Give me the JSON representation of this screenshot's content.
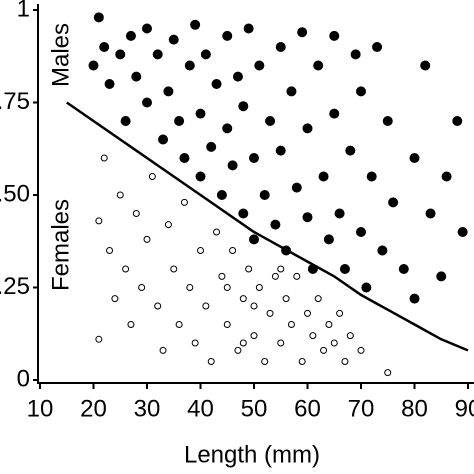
{
  "chart_data": {
    "type": "scatter",
    "xlabel": "Length (mm)",
    "xlim": [
      10,
      90
    ],
    "xticks": [
      10,
      20,
      30,
      40,
      50,
      60,
      70,
      80,
      90
    ],
    "ylim": [
      0,
      1
    ],
    "yticks": [
      0,
      {
        "value": 0.25,
        "label": ".25"
      },
      {
        "value": 0.5,
        "label": ".50"
      },
      {
        "value": 0.75,
        "label": ".75"
      },
      1
    ],
    "series": [
      {
        "name": "Males",
        "color": "#000000",
        "filled": true,
        "x": [
          21,
          22,
          20,
          23,
          25,
          27,
          26,
          28,
          30,
          30,
          32,
          33,
          34,
          35,
          36,
          37,
          38,
          39,
          40,
          40,
          41,
          42,
          43,
          44,
          45,
          45,
          46,
          47,
          48,
          48,
          49,
          50,
          50,
          51,
          52,
          53,
          54,
          55,
          55,
          56,
          57,
          58,
          59,
          60,
          60,
          61,
          62,
          63,
          64,
          65,
          65,
          66,
          67,
          68,
          69,
          70,
          70,
          71,
          72,
          73,
          74,
          75,
          76,
          78,
          80,
          80,
          82,
          83,
          85,
          86,
          88,
          89
        ],
        "values": [
          0.98,
          0.9,
          0.85,
          0.8,
          0.88,
          0.93,
          0.7,
          0.82,
          0.95,
          0.75,
          0.88,
          0.65,
          0.78,
          0.92,
          0.7,
          0.6,
          0.85,
          0.96,
          0.72,
          0.55,
          0.88,
          0.63,
          0.8,
          0.5,
          0.93,
          0.68,
          0.58,
          0.82,
          0.45,
          0.74,
          0.95,
          0.6,
          0.38,
          0.85,
          0.5,
          0.7,
          0.42,
          0.9,
          0.62,
          0.35,
          0.78,
          0.52,
          0.94,
          0.44,
          0.68,
          0.3,
          0.85,
          0.55,
          0.38,
          0.72,
          0.93,
          0.45,
          0.3,
          0.62,
          0.88,
          0.4,
          0.78,
          0.25,
          0.55,
          0.9,
          0.35,
          0.7,
          0.48,
          0.3,
          0.6,
          0.22,
          0.85,
          0.45,
          0.28,
          0.55,
          0.7,
          0.4
        ]
      },
      {
        "name": "Females",
        "color": "#000000",
        "filled": false,
        "x": [
          21,
          21,
          22,
          23,
          24,
          25,
          26,
          27,
          28,
          29,
          30,
          31,
          32,
          33,
          34,
          35,
          36,
          37,
          38,
          39,
          40,
          41,
          42,
          43,
          44,
          45,
          46,
          47,
          48,
          49,
          50,
          51,
          52,
          53,
          54,
          55,
          56,
          57,
          58,
          59,
          60,
          61,
          62,
          63,
          64,
          65,
          66,
          67,
          68,
          70,
          75,
          45,
          50,
          55,
          48
        ],
        "values": [
          0.43,
          0.11,
          0.6,
          0.35,
          0.22,
          0.5,
          0.3,
          0.15,
          0.45,
          0.25,
          0.38,
          0.55,
          0.2,
          0.08,
          0.42,
          0.3,
          0.15,
          0.48,
          0.25,
          0.1,
          0.35,
          0.2,
          0.05,
          0.4,
          0.28,
          0.15,
          0.35,
          0.08,
          0.22,
          0.3,
          0.12,
          0.25,
          0.05,
          0.18,
          0.28,
          0.1,
          0.22,
          0.15,
          0.28,
          0.05,
          0.18,
          0.12,
          0.22,
          0.08,
          0.15,
          0.1,
          0.18,
          0.05,
          0.12,
          0.08,
          0.02,
          0.25,
          0.2,
          0.3,
          0.1
        ]
      }
    ],
    "curve": {
      "color": "#000000",
      "x": [
        15,
        20,
        25,
        30,
        35,
        40,
        45,
        50,
        55,
        60,
        65,
        70,
        75,
        80,
        85,
        90
      ],
      "values": [
        0.75,
        0.7,
        0.65,
        0.6,
        0.55,
        0.5,
        0.45,
        0.4,
        0.36,
        0.32,
        0.28,
        0.23,
        0.19,
        0.15,
        0.11,
        0.08
      ]
    }
  }
}
